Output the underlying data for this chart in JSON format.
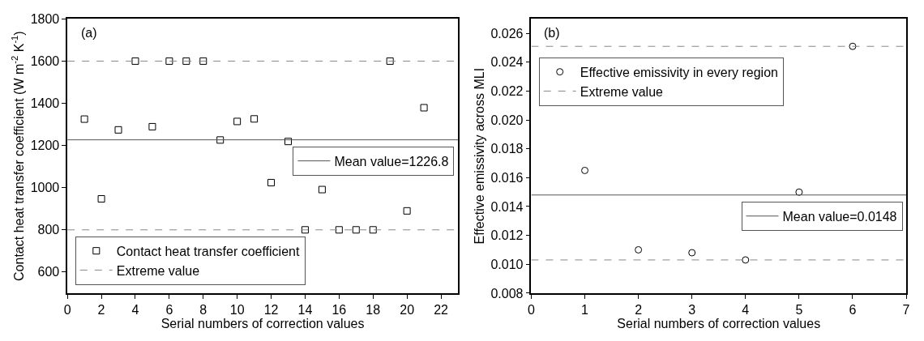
{
  "chart_data": [
    {
      "type": "scatter",
      "title": "(a)",
      "xlabel": "Serial numbers of correction values",
      "ylabel": "Contact heat transfer coefficient (W m$^{-2}$ K$^{-1}$)",
      "x": [
        1,
        2,
        3,
        4,
        5,
        6,
        7,
        8,
        9,
        10,
        11,
        12,
        13,
        14,
        15,
        16,
        17,
        18,
        19,
        20,
        21
      ],
      "series": [
        {
          "name": "Contact heat transfer coefficient",
          "color": "#000000",
          "values": [
            1325,
            947,
            1274,
            1600,
            1289,
            1600,
            1600,
            1600,
            1226,
            1314,
            1326,
            1024,
            1219,
            800,
            991,
            800,
            800,
            800,
            1600,
            890,
            1379
          ]
        }
      ],
      "marker": "square",
      "xlim": [
        0,
        23
      ],
      "xticks": [
        0,
        2,
        4,
        6,
        8,
        10,
        12,
        14,
        16,
        18,
        20,
        22
      ],
      "ylim": [
        500,
        1800
      ],
      "yticks": [
        600,
        800,
        1000,
        1200,
        1400,
        1600,
        1800
      ],
      "ref_lines": [
        {
          "axis": "y",
          "value": 1600,
          "label": "Extreme value",
          "color": "#888888",
          "line_style": "dashed"
        },
        {
          "axis": "y",
          "value": 800,
          "color": "#888888",
          "line_style": "dashed"
        },
        {
          "axis": "y",
          "value": 1226.8,
          "label": "Mean value=1226.8",
          "color": "#555555",
          "line_style": "solid"
        }
      ],
      "legend": "bottom left",
      "grid": false
    },
    {
      "type": "scatter",
      "title": "(b)",
      "xlabel": "Serial numbers of correction values",
      "ylabel": "Effective emissivity across MLI",
      "x": [
        1,
        2,
        3,
        4,
        5,
        6
      ],
      "series": [
        {
          "name": "Effective emissivity in every region",
          "color": "#000000",
          "values": [
            0.0165,
            0.011,
            0.0108,
            0.0103,
            0.015,
            0.0251
          ]
        }
      ],
      "marker": "circle",
      "xlim": [
        0,
        7
      ],
      "xticks": [
        0,
        1,
        2,
        3,
        4,
        5,
        6,
        7
      ],
      "ylim": [
        0.008,
        0.027
      ],
      "yticks": [
        {
          "value": 0.008,
          "label": "0.008"
        },
        {
          "value": 0.01,
          "label": "0.010"
        },
        {
          "value": 0.012,
          "label": "0.012"
        },
        {
          "value": 0.014,
          "label": "0.014"
        },
        {
          "value": 0.016,
          "label": "0.016"
        },
        {
          "value": 0.018,
          "label": "0.018"
        },
        {
          "value": 0.02,
          "label": "0.020"
        },
        {
          "value": 0.022,
          "label": "0.022"
        },
        {
          "value": 0.024,
          "label": "0.024"
        },
        {
          "value": 0.026,
          "label": "0.026"
        }
      ],
      "ref_lines": [
        {
          "axis": "y",
          "value": 0.0251,
          "label": "Extreme value",
          "color": "#888888",
          "line_style": "dashed"
        },
        {
          "axis": "y",
          "value": 0.0103,
          "color": "#888888",
          "line_style": "dashed"
        },
        {
          "axis": "y",
          "value": 0.0148,
          "label": "Mean value=0.0148",
          "color": "#555555",
          "line_style": "solid"
        }
      ],
      "legend": "top left",
      "grid": false
    }
  ]
}
